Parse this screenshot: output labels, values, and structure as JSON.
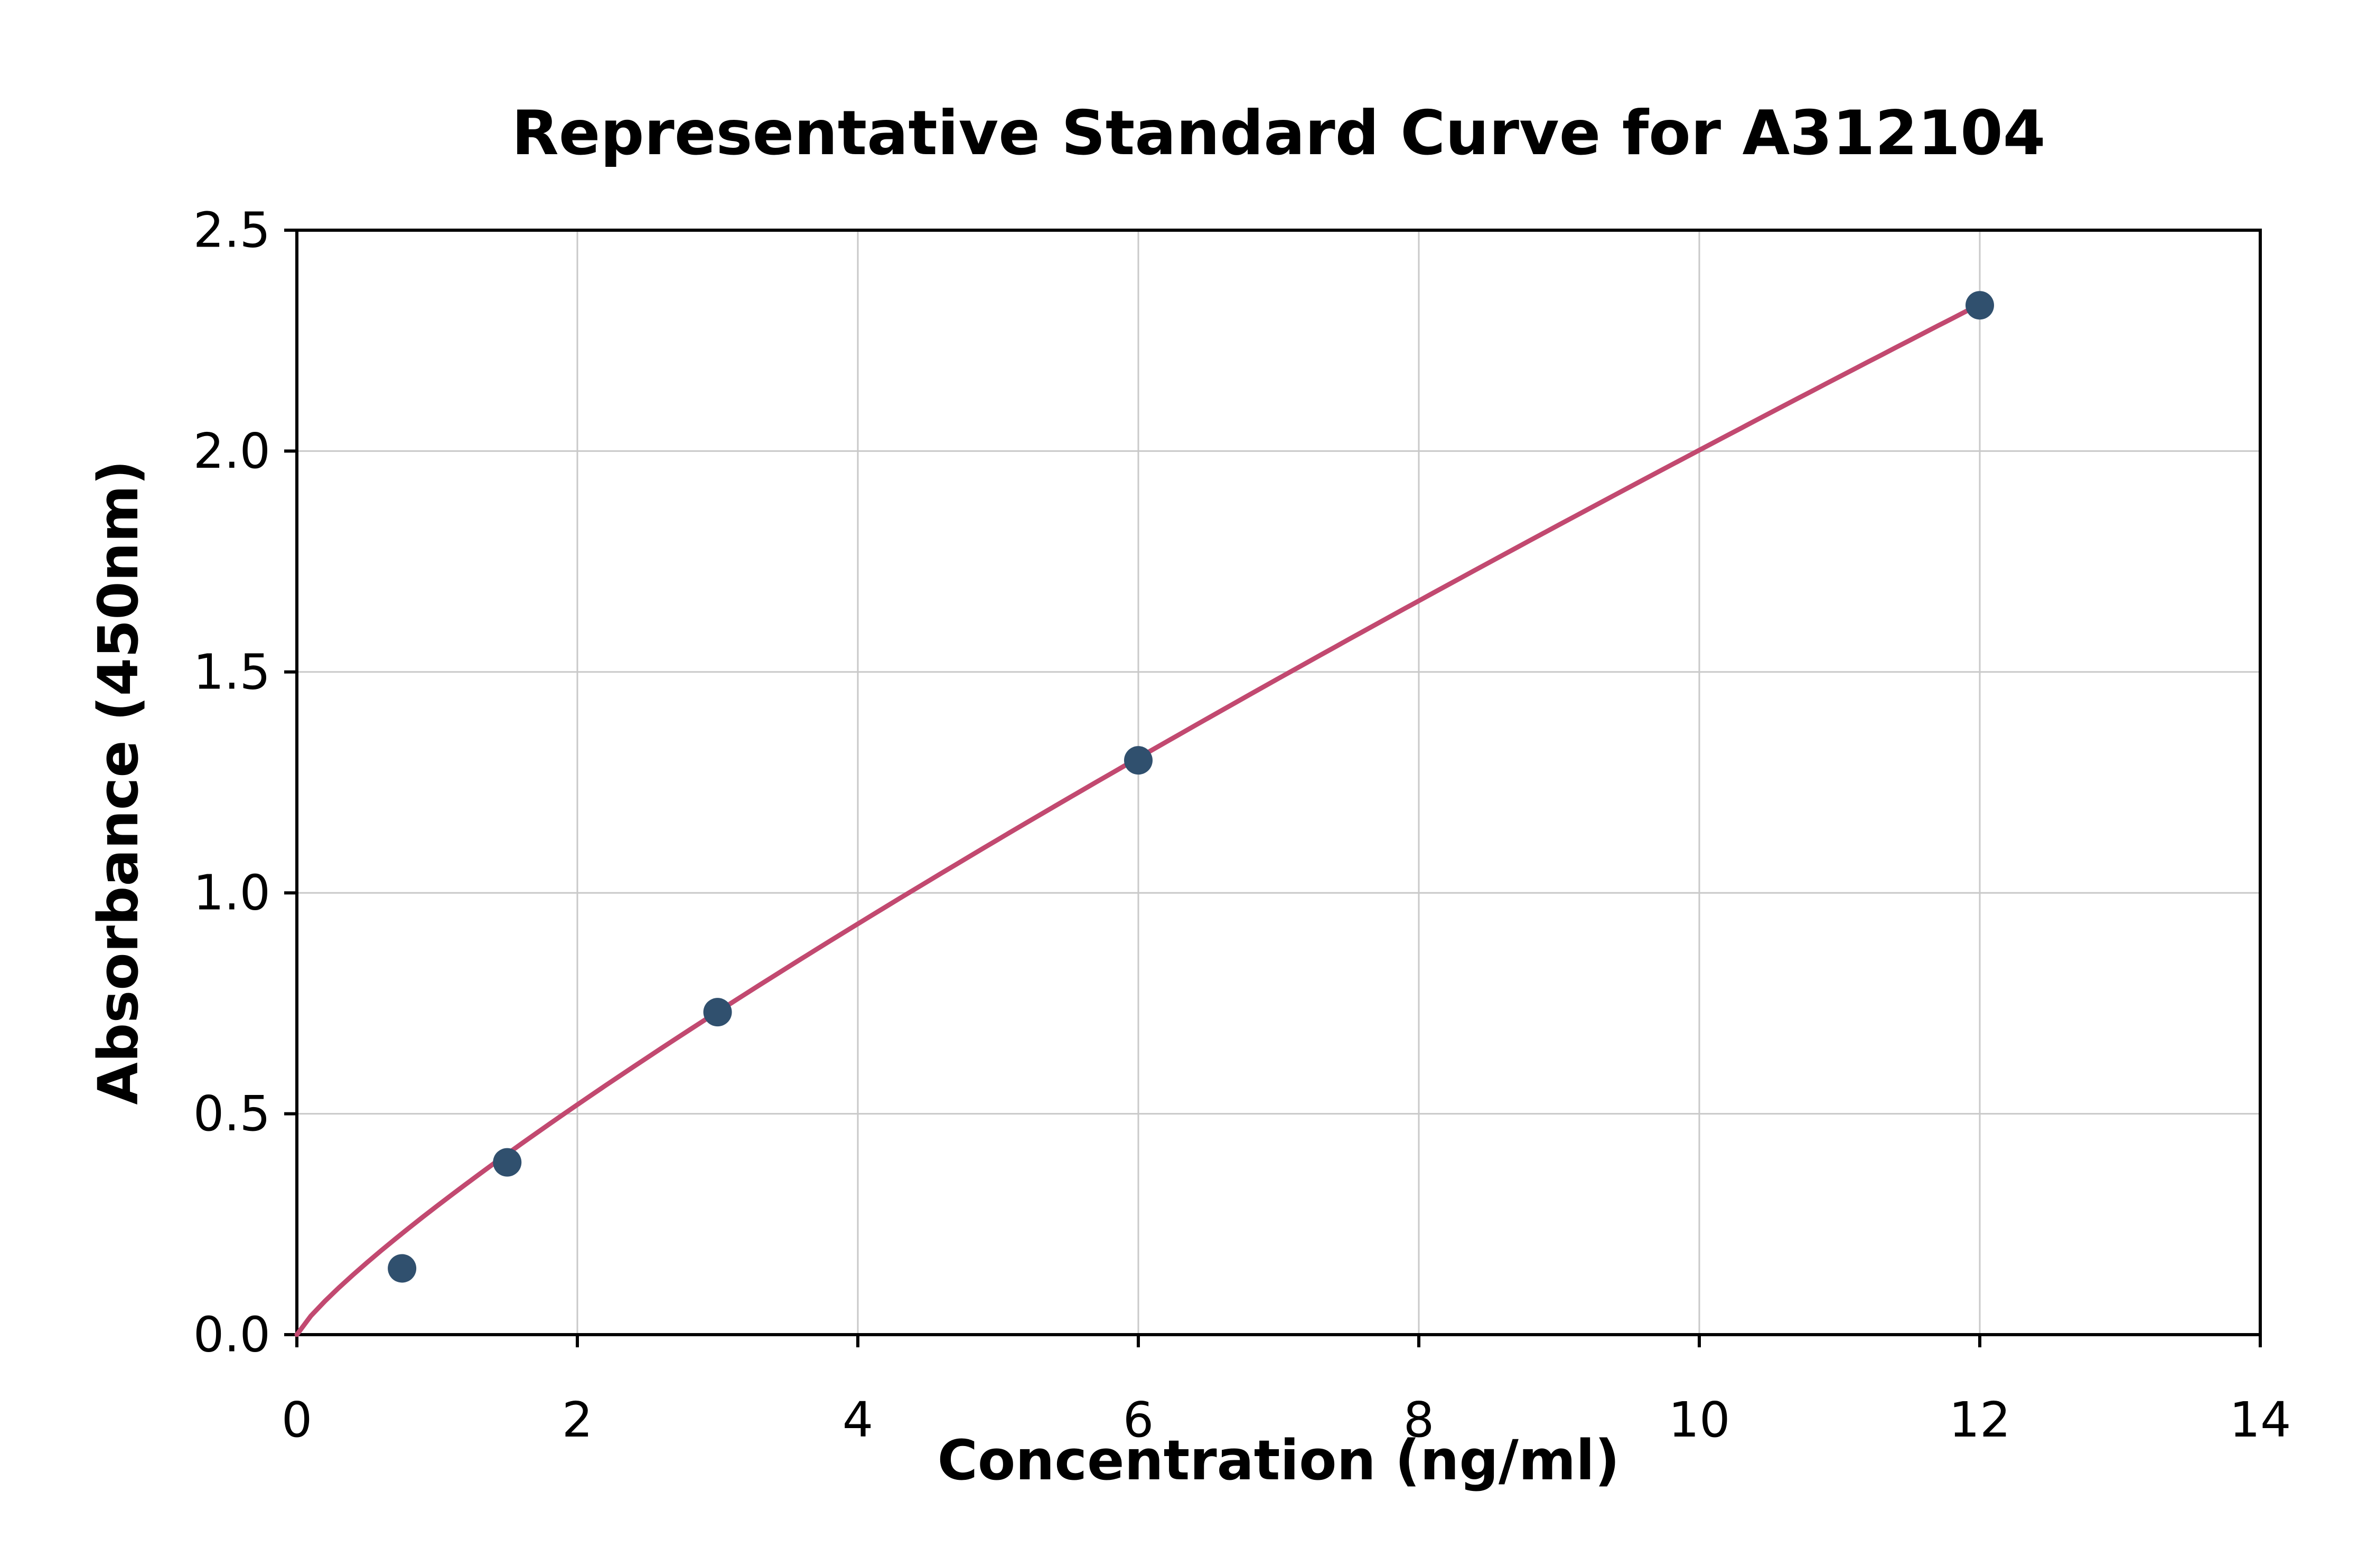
{
  "chart_data": {
    "type": "scatter",
    "title": "Representative Standard Curve for A312104",
    "xlabel": "Concentration (ng/ml)",
    "ylabel": "Absorbance (450nm)",
    "xlim": [
      0,
      14
    ],
    "ylim": [
      0.0,
      2.5
    ],
    "xticks": {
      "values": [
        0,
        2,
        4,
        6,
        8,
        10,
        12,
        14
      ],
      "labels": [
        "0",
        "2",
        "4",
        "6",
        "8",
        "10",
        "12",
        "14"
      ]
    },
    "yticks": {
      "values": [
        0.0,
        0.5,
        1.0,
        1.5,
        2.0,
        2.5
      ],
      "labels": [
        "0.0",
        "0.5",
        "1.0",
        "1.5",
        "2.0",
        "2.5"
      ]
    },
    "points": {
      "x": [
        0.75,
        1.5,
        3,
        6,
        12
      ],
      "y": [
        0.15,
        0.39,
        0.73,
        1.3,
        2.33
      ]
    },
    "fit_curve": {
      "type": "power",
      "a": 0.2914,
      "b": 0.837,
      "x_start": 0,
      "x_end": 12
    },
    "grid": true,
    "legend": "none",
    "colors": {
      "curve": "#c24970",
      "point": "#30506e",
      "grid": "#c9c9c9",
      "axis": "#000000",
      "background": "#ffffff"
    }
  }
}
